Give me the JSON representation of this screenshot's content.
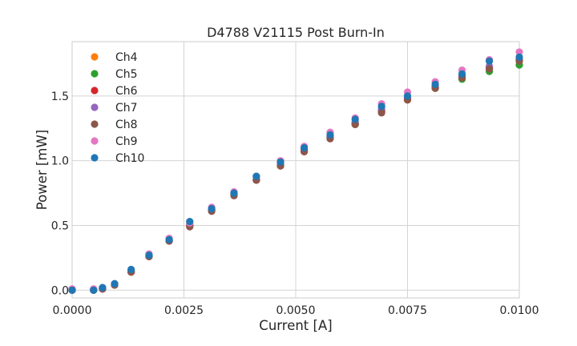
{
  "chart_data": {
    "type": "scatter",
    "title": "D4788 V21115 Post Burn-In",
    "xlabel": "Current [A]",
    "ylabel": "Power [mW]",
    "xlim": [
      0.0,
      0.01
    ],
    "ylim": [
      -0.06,
      1.92
    ],
    "xticks": [
      "0.0000",
      "0.0025",
      "0.0050",
      "0.0075",
      "0.0100"
    ],
    "xtick_values": [
      0.0,
      0.0025,
      0.005,
      0.0075,
      0.01
    ],
    "yticks": [
      "0.0",
      "0.5",
      "1.0",
      "1.5"
    ],
    "ytick_values": [
      0.0,
      0.5,
      1.0,
      1.5
    ],
    "grid": true,
    "legend_position": "top-left",
    "x": [
      0.0,
      0.00048,
      0.00068,
      0.00095,
      0.00132,
      0.00172,
      0.00217,
      0.00263,
      0.00312,
      0.00362,
      0.00412,
      0.00466,
      0.00519,
      0.00577,
      0.00633,
      0.00692,
      0.0075,
      0.00812,
      0.00872,
      0.00933,
      0.01
    ],
    "series": [
      {
        "name": "Ch4",
        "color": "#ff7f0e",
        "values": [
          0.0,
          0.0,
          0.01,
          0.04,
          0.14,
          0.26,
          0.38,
          0.5,
          0.62,
          0.74,
          0.85,
          0.96,
          1.07,
          1.18,
          1.28,
          1.38,
          1.47,
          1.56,
          1.64,
          1.71,
          1.77
        ]
      },
      {
        "name": "Ch5",
        "color": "#2ca02c",
        "values": [
          0.0,
          0.0,
          0.01,
          0.04,
          0.14,
          0.26,
          0.38,
          0.5,
          0.62,
          0.74,
          0.85,
          0.97,
          1.08,
          1.18,
          1.28,
          1.38,
          1.48,
          1.56,
          1.63,
          1.69,
          1.74
        ]
      },
      {
        "name": "Ch6",
        "color": "#d62728",
        "values": [
          0.0,
          0.0,
          0.01,
          0.04,
          0.14,
          0.26,
          0.38,
          0.5,
          0.62,
          0.74,
          0.85,
          0.97,
          1.08,
          1.18,
          1.29,
          1.39,
          1.48,
          1.57,
          1.65,
          1.72,
          1.78
        ]
      },
      {
        "name": "Ch7",
        "color": "#9467bd",
        "values": [
          0.0,
          0.0,
          0.01,
          0.05,
          0.15,
          0.27,
          0.39,
          0.51,
          0.62,
          0.75,
          0.86,
          0.98,
          1.09,
          1.19,
          1.3,
          1.4,
          1.49,
          1.58,
          1.66,
          1.73,
          1.79
        ]
      },
      {
        "name": "Ch8",
        "color": "#8c564b",
        "values": [
          0.0,
          0.0,
          0.01,
          0.04,
          0.14,
          0.26,
          0.38,
          0.49,
          0.61,
          0.73,
          0.85,
          0.96,
          1.07,
          1.17,
          1.28,
          1.37,
          1.47,
          1.56,
          1.64,
          1.71,
          1.77
        ]
      },
      {
        "name": "Ch9",
        "color": "#e377c2",
        "values": [
          0.01,
          0.01,
          0.02,
          0.05,
          0.16,
          0.28,
          0.4,
          0.52,
          0.64,
          0.76,
          0.88,
          1.0,
          1.11,
          1.22,
          1.33,
          1.44,
          1.53,
          1.61,
          1.7,
          1.78,
          1.84
        ]
      },
      {
        "name": "Ch10",
        "color": "#1f77b4",
        "values": [
          0.0,
          0.0,
          0.02,
          0.05,
          0.16,
          0.27,
          0.39,
          0.53,
          0.63,
          0.75,
          0.88,
          0.99,
          1.1,
          1.2,
          1.32,
          1.42,
          1.5,
          1.59,
          1.67,
          1.77,
          1.8
        ]
      }
    ]
  }
}
